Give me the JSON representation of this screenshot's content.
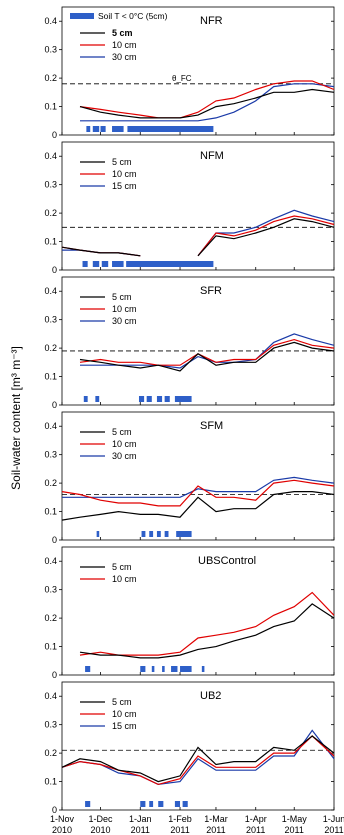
{
  "figure": {
    "ylabel": "Soil-water content [m³ m⁻³]",
    "shared_legend": {
      "soil_frost": "Soil T < 0°C (5cm)",
      "field_capacity": "θ_FC"
    },
    "x_tick_labels": [
      [
        "1-Nov",
        "2010"
      ],
      [
        "1-Dec",
        "2010"
      ],
      [
        "1-Jan",
        "2011"
      ],
      [
        "1-Feb",
        "2011"
      ],
      [
        "1-Mar",
        "2011"
      ],
      [
        "1-Apr",
        "2011"
      ],
      [
        "1-May",
        "2011"
      ],
      [
        "1-Jun",
        "2011"
      ]
    ],
    "y_tick_labels": [
      "0",
      "0.1",
      "0.2",
      "0.3",
      "0.4"
    ],
    "colors": {
      "d5": "#000000",
      "d10": "#e00000",
      "d30": "#1a3aa8",
      "frost": "#2e5fc8",
      "fc_line": "#000000"
    }
  },
  "chart_data": [
    {
      "type": "line",
      "title": "NFR",
      "xlabel": "",
      "ylabel": "Soil-water content [m³ m⁻³]",
      "xlim": [
        "2010-11-01",
        "2011-06-01"
      ],
      "ylim": [
        0,
        0.45
      ],
      "theta_fc": 0.18,
      "x": [
        "2010-11-01",
        "2010-11-15",
        "2010-12-01",
        "2010-12-15",
        "2011-01-01",
        "2011-01-15",
        "2011-02-01",
        "2011-02-15",
        "2011-03-01",
        "2011-03-15",
        "2011-04-01",
        "2011-04-15",
        "2011-05-01",
        "2011-05-15",
        "2011-06-01"
      ],
      "series": [
        {
          "name": "5 cm",
          "values": [
            null,
            0.1,
            0.08,
            0.07,
            0.06,
            0.06,
            0.06,
            0.07,
            0.1,
            0.11,
            0.13,
            0.15,
            0.15,
            0.16,
            0.15
          ]
        },
        {
          "name": "10 cm",
          "values": [
            null,
            0.1,
            0.09,
            0.08,
            0.07,
            0.06,
            0.06,
            0.08,
            0.12,
            0.13,
            0.16,
            0.18,
            0.19,
            0.19,
            0.16
          ]
        },
        {
          "name": "30 cm",
          "values": [
            null,
            0.05,
            0.05,
            0.05,
            0.05,
            0.05,
            0.05,
            0.05,
            0.06,
            0.08,
            0.12,
            0.17,
            0.18,
            0.18,
            0.17
          ]
        }
      ],
      "frost_periods": [
        [
          "2010-11-20",
          "2010-11-23"
        ],
        [
          "2010-11-25",
          "2010-11-30"
        ],
        [
          "2010-12-01",
          "2010-12-05"
        ],
        [
          "2010-12-10",
          "2010-12-19"
        ],
        [
          "2010-12-22",
          "2011-02-27"
        ]
      ]
    },
    {
      "type": "line",
      "title": "NFM",
      "xlabel": "",
      "ylabel": "Soil-water content [m³ m⁻³]",
      "xlim": [
        "2010-11-01",
        "2011-06-01"
      ],
      "ylim": [
        0,
        0.45
      ],
      "theta_fc": 0.15,
      "x": [
        "2010-11-01",
        "2010-11-15",
        "2010-12-01",
        "2010-12-15",
        "2011-01-01",
        "2011-01-15",
        "2011-02-01",
        "2011-02-15",
        "2011-03-01",
        "2011-03-15",
        "2011-04-01",
        "2011-04-15",
        "2011-05-01",
        "2011-05-15",
        "2011-06-01"
      ],
      "series": [
        {
          "name": "5 cm",
          "values": [
            0.08,
            0.07,
            0.06,
            0.06,
            0.05,
            null,
            null,
            0.05,
            0.12,
            0.11,
            0.13,
            0.15,
            0.18,
            0.17,
            0.15
          ]
        },
        {
          "name": "10 cm",
          "values": [
            0.08,
            0.07,
            0.06,
            0.06,
            0.05,
            null,
            null,
            0.05,
            0.13,
            0.12,
            0.14,
            0.17,
            0.19,
            0.18,
            0.16
          ]
        },
        {
          "name": "15 cm",
          "values": [
            0.07,
            0.07,
            0.06,
            0.06,
            0.05,
            null,
            null,
            0.05,
            0.13,
            0.13,
            0.15,
            0.18,
            0.21,
            0.19,
            0.17
          ]
        }
      ],
      "frost_periods": [
        [
          "2010-11-17",
          "2010-11-21"
        ],
        [
          "2010-11-25",
          "2010-11-30"
        ],
        [
          "2010-12-02",
          "2010-12-07"
        ],
        [
          "2010-12-10",
          "2010-12-19"
        ],
        [
          "2010-12-21",
          "2011-02-27"
        ]
      ]
    },
    {
      "type": "line",
      "title": "SFR",
      "xlabel": "",
      "ylabel": "Soil-water content [m³ m⁻³]",
      "xlim": [
        "2010-11-01",
        "2011-06-01"
      ],
      "ylim": [
        0,
        0.45
      ],
      "theta_fc": 0.19,
      "x": [
        "2010-11-01",
        "2010-11-15",
        "2010-12-01",
        "2010-12-15",
        "2011-01-01",
        "2011-01-15",
        "2011-02-01",
        "2011-02-15",
        "2011-03-01",
        "2011-03-15",
        "2011-04-01",
        "2011-04-15",
        "2011-05-01",
        "2011-05-15",
        "2011-06-01"
      ],
      "series": [
        {
          "name": "5 cm",
          "values": [
            null,
            0.16,
            0.15,
            0.14,
            0.13,
            0.14,
            0.12,
            0.18,
            0.14,
            0.15,
            0.15,
            0.2,
            0.22,
            0.2,
            0.19
          ]
        },
        {
          "name": "10 cm",
          "values": [
            null,
            0.15,
            0.16,
            0.15,
            0.15,
            0.14,
            0.14,
            0.18,
            0.15,
            0.16,
            0.16,
            0.21,
            0.23,
            0.21,
            0.2
          ]
        },
        {
          "name": "30 cm",
          "values": [
            null,
            0.14,
            0.14,
            0.14,
            0.14,
            0.14,
            0.13,
            0.17,
            0.15,
            0.15,
            0.16,
            0.22,
            0.25,
            0.23,
            0.21
          ]
        }
      ],
      "frost_periods": [
        [
          "2010-11-18",
          "2010-11-21"
        ],
        [
          "2010-11-27",
          "2010-11-30"
        ],
        [
          "2010-12-31",
          "2011-01-04"
        ],
        [
          "2011-01-06",
          "2011-01-10"
        ],
        [
          "2011-01-14",
          "2011-01-18"
        ],
        [
          "2011-01-20",
          "2011-01-24"
        ],
        [
          "2011-01-28",
          "2011-02-10"
        ]
      ]
    },
    {
      "type": "line",
      "title": "SFM",
      "xlabel": "",
      "ylabel": "Soil-water content [m³ m⁻³]",
      "xlim": [
        "2010-11-01",
        "2011-06-01"
      ],
      "ylim": [
        0,
        0.45
      ],
      "theta_fc": 0.16,
      "x": [
        "2010-11-01",
        "2010-11-15",
        "2010-12-01",
        "2010-12-15",
        "2011-01-01",
        "2011-01-15",
        "2011-02-01",
        "2011-02-15",
        "2011-03-01",
        "2011-03-15",
        "2011-04-01",
        "2011-04-15",
        "2011-05-01",
        "2011-05-15",
        "2011-06-01"
      ],
      "series": [
        {
          "name": "5 cm",
          "values": [
            0.07,
            0.08,
            0.09,
            0.1,
            0.09,
            0.09,
            0.08,
            0.15,
            0.1,
            0.11,
            0.11,
            0.16,
            0.17,
            0.17,
            0.16
          ]
        },
        {
          "name": "10 cm",
          "values": [
            0.17,
            0.16,
            0.14,
            0.13,
            0.13,
            0.12,
            0.12,
            0.19,
            0.15,
            0.15,
            0.14,
            0.2,
            0.21,
            0.2,
            0.19
          ]
        },
        {
          "name": "30 cm",
          "values": [
            0.15,
            0.15,
            0.15,
            0.15,
            0.15,
            0.15,
            0.15,
            0.18,
            0.17,
            0.17,
            0.17,
            0.21,
            0.22,
            0.21,
            0.2
          ]
        }
      ],
      "frost_periods": [
        [
          "2010-11-28",
          "2010-11-30"
        ],
        [
          "2011-01-02",
          "2011-01-05"
        ],
        [
          "2011-01-08",
          "2011-01-11"
        ],
        [
          "2011-01-14",
          "2011-01-17"
        ],
        [
          "2011-01-20",
          "2011-01-23"
        ],
        [
          "2011-01-29",
          "2011-02-10"
        ]
      ]
    },
    {
      "type": "line",
      "title": "UBSControl",
      "xlabel": "",
      "ylabel": "Soil-water content [m³ m⁻³]",
      "xlim": [
        "2010-11-01",
        "2011-06-01"
      ],
      "ylim": [
        0,
        0.45
      ],
      "x": [
        "2010-11-01",
        "2010-11-15",
        "2010-12-01",
        "2010-12-15",
        "2011-01-01",
        "2011-01-15",
        "2011-02-01",
        "2011-02-15",
        "2011-03-01",
        "2011-03-15",
        "2011-04-01",
        "2011-04-15",
        "2011-05-01",
        "2011-05-15",
        "2011-06-01"
      ],
      "series": [
        {
          "name": "5 cm",
          "values": [
            null,
            0.08,
            0.07,
            0.07,
            0.06,
            0.06,
            0.07,
            0.09,
            0.1,
            0.12,
            0.14,
            0.17,
            0.19,
            0.25,
            0.2
          ]
        },
        {
          "name": "10 cm",
          "values": [
            null,
            0.07,
            0.08,
            0.07,
            0.07,
            0.07,
            0.08,
            0.13,
            0.14,
            0.15,
            0.17,
            0.21,
            0.24,
            0.29,
            0.21
          ]
        }
      ],
      "frost_periods": [
        [
          "2010-11-19",
          "2010-11-23"
        ],
        [
          "2011-01-01",
          "2011-01-05"
        ],
        [
          "2011-01-10",
          "2011-01-12"
        ],
        [
          "2011-01-18",
          "2011-01-20"
        ],
        [
          "2011-01-25",
          "2011-01-30"
        ],
        [
          "2011-02-01",
          "2011-02-10"
        ],
        [
          "2011-02-18",
          "2011-02-20"
        ]
      ]
    },
    {
      "type": "line",
      "title": "UB2",
      "xlabel": "",
      "ylabel": "Soil-water content [m³ m⁻³]",
      "xlim": [
        "2010-11-01",
        "2011-06-01"
      ],
      "ylim": [
        0,
        0.45
      ],
      "theta_fc": 0.21,
      "x": [
        "2010-11-01",
        "2010-11-15",
        "2010-12-01",
        "2010-12-15",
        "2011-01-01",
        "2011-01-15",
        "2011-02-01",
        "2011-02-15",
        "2011-03-01",
        "2011-03-15",
        "2011-04-01",
        "2011-04-15",
        "2011-05-01",
        "2011-05-15",
        "2011-06-01"
      ],
      "series": [
        {
          "name": "5 cm",
          "values": [
            0.15,
            0.18,
            0.17,
            0.14,
            0.13,
            0.1,
            0.12,
            0.22,
            0.16,
            0.17,
            0.17,
            0.22,
            0.21,
            0.26,
            0.2
          ]
        },
        {
          "name": "10 cm",
          "values": [
            0.15,
            0.17,
            0.16,
            0.14,
            0.12,
            0.09,
            0.11,
            0.19,
            0.15,
            0.15,
            0.15,
            0.2,
            0.2,
            0.26,
            0.19
          ]
        },
        {
          "name": "15 cm",
          "values": [
            0.15,
            0.17,
            0.16,
            0.13,
            0.12,
            0.09,
            0.1,
            0.18,
            0.14,
            0.14,
            0.14,
            0.19,
            0.19,
            0.28,
            0.18
          ]
        }
      ],
      "frost_periods": [
        [
          "2010-11-19",
          "2010-11-23"
        ],
        [
          "2011-01-01",
          "2011-01-05"
        ],
        [
          "2011-01-08",
          "2011-01-11"
        ],
        [
          "2011-01-15",
          "2011-01-19"
        ],
        [
          "2011-01-28",
          "2011-02-01"
        ],
        [
          "2011-02-03",
          "2011-02-07"
        ]
      ]
    }
  ]
}
